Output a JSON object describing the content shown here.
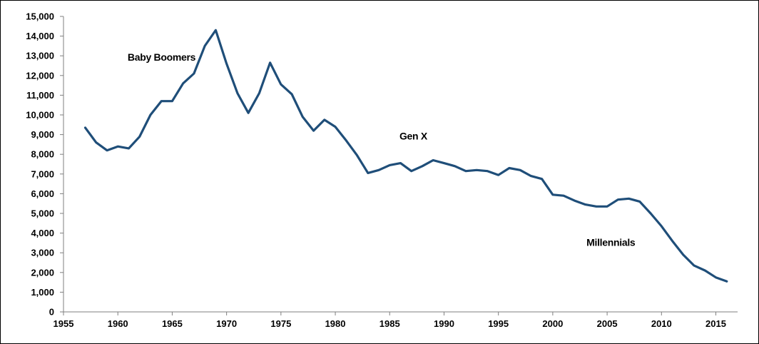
{
  "chart_data": {
    "type": "line",
    "xlim": [
      1955,
      2017
    ],
    "ylim": [
      0,
      15000
    ],
    "x_ticks": [
      "1955",
      "1960",
      "1965",
      "1970",
      "1975",
      "1980",
      "1985",
      "1990",
      "1995",
      "2000",
      "2005",
      "2010",
      "2015"
    ],
    "y_ticks": [
      "0",
      "1,000",
      "2,000",
      "3,000",
      "4,000",
      "5,000",
      "6,000",
      "7,000",
      "8,000",
      "9,000",
      "10,000",
      "11,000",
      "12,000",
      "13,000",
      "14,000",
      "15,000"
    ],
    "grid": false,
    "legend": "none",
    "series": [
      {
        "color": "#1f4e79",
        "x": [
          1957,
          1958,
          1959,
          1960,
          1961,
          1962,
          1963,
          1964,
          1965,
          1966,
          1967,
          1968,
          1969,
          1970,
          1971,
          1972,
          1973,
          1974,
          1975,
          1976,
          1977,
          1978,
          1979,
          1980,
          1981,
          1982,
          1983,
          1984,
          1985,
          1986,
          1987,
          1988,
          1989,
          1990,
          1991,
          1992,
          1993,
          1994,
          1995,
          1996,
          1997,
          1998,
          1999,
          2000,
          2001,
          2002,
          2003,
          2004,
          2005,
          2006,
          2007,
          2008,
          2009,
          2010,
          2011,
          2012,
          2013,
          2014,
          2015,
          2016
        ],
        "values": [
          9350,
          8600,
          8200,
          8400,
          8300,
          8900,
          10000,
          10700,
          10700,
          11600,
          12100,
          13500,
          14300,
          12600,
          11100,
          10100,
          11100,
          12650,
          11550,
          11050,
          9900,
          9200,
          9750,
          9400,
          8700,
          7950,
          7050,
          7200,
          7450,
          7550,
          7150,
          7400,
          7700,
          7550,
          7400,
          7150,
          7200,
          7150,
          6950,
          7300,
          7200,
          6900,
          6750,
          5950,
          5900,
          5650,
          5450,
          5350,
          5350,
          5700,
          5750,
          5600,
          5000,
          4350,
          3600,
          2900,
          2350,
          2100,
          1750,
          1550
        ]
      }
    ],
    "annotations": [
      {
        "text": "Baby Boomers",
        "x": 1960.9,
        "y": 12750
      },
      {
        "text": "Gen X",
        "x": 1985.9,
        "y": 8750
      },
      {
        "text": "Millennials",
        "x": 2003.1,
        "y": 3350
      }
    ]
  }
}
